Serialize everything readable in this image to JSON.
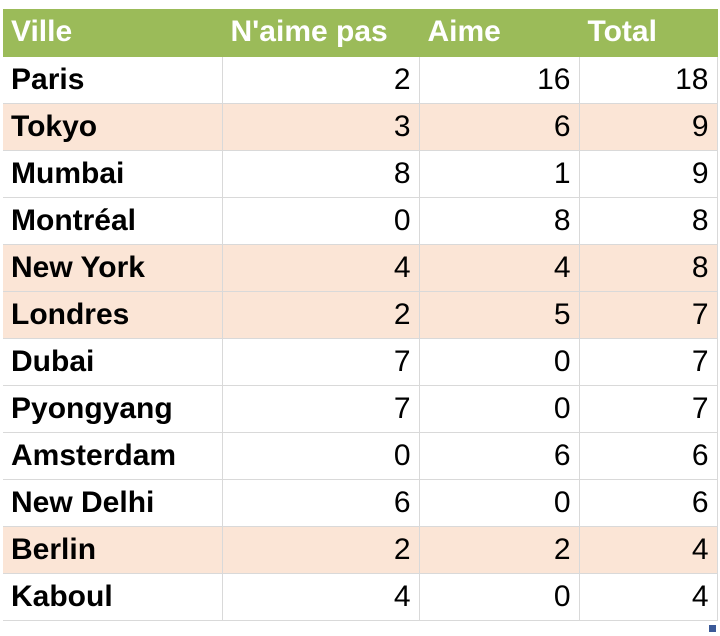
{
  "table": {
    "headers": [
      "Ville",
      "N'aime pas",
      "Aime",
      "Total"
    ],
    "rows": [
      {
        "city": "Paris",
        "dislike": "2",
        "like": "16",
        "total": "18",
        "highlighted": false
      },
      {
        "city": "Tokyo",
        "dislike": "3",
        "like": "6",
        "total": "9",
        "highlighted": true
      },
      {
        "city": "Mumbai",
        "dislike": "8",
        "like": "1",
        "total": "9",
        "highlighted": false
      },
      {
        "city": "Montréal",
        "dislike": "0",
        "like": "8",
        "total": "8",
        "highlighted": false
      },
      {
        "city": "New York",
        "dislike": "4",
        "like": "4",
        "total": "8",
        "highlighted": true
      },
      {
        "city": "Londres",
        "dislike": "2",
        "like": "5",
        "total": "7",
        "highlighted": true
      },
      {
        "city": "Dubai",
        "dislike": "7",
        "like": "0",
        "total": "7",
        "highlighted": false
      },
      {
        "city": "Pyongyang",
        "dislike": "7",
        "like": "0",
        "total": "7",
        "highlighted": false
      },
      {
        "city": "Amsterdam",
        "dislike": "0",
        "like": "6",
        "total": "6",
        "highlighted": false
      },
      {
        "city": "New Delhi",
        "dislike": "6",
        "like": "0",
        "total": "6",
        "highlighted": false
      },
      {
        "city": "Berlin",
        "dislike": "2",
        "like": "2",
        "total": "4",
        "highlighted": true
      },
      {
        "city": "Kaboul",
        "dislike": "4",
        "like": "0",
        "total": "4",
        "highlighted": false
      }
    ]
  },
  "colors": {
    "header_bg": "#9bbb59",
    "header_text": "#ffffff",
    "highlight_row": "#fbe5d6",
    "gridline": "#d9d9d9"
  }
}
